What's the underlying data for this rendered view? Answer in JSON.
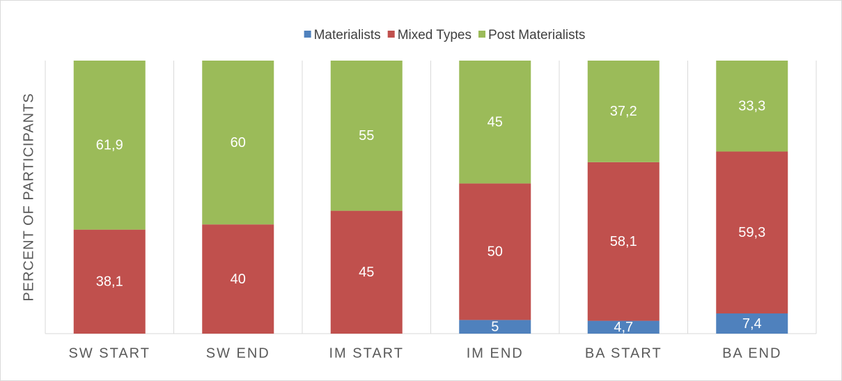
{
  "chart_data": {
    "type": "stacked_bar",
    "y_label": "PERCENT OF PARTICIPANTS",
    "categories": [
      "SW START",
      "SW END",
      "IM START",
      "IM END",
      "BA START",
      "BA END"
    ],
    "series": [
      {
        "name": "Materialists",
        "color": "#4f81bd",
        "values": [
          null,
          null,
          null,
          5,
          4.7,
          7.4
        ],
        "value_labels": [
          null,
          null,
          null,
          "5",
          "4,7",
          "7,4"
        ]
      },
      {
        "name": "Mixed Types",
        "color": "#c0504d",
        "values": [
          38.1,
          40,
          45,
          50,
          58.1,
          59.3
        ],
        "value_labels": [
          "38,1",
          "40",
          "45",
          "50",
          "58,1",
          "59,3"
        ]
      },
      {
        "name": "Post Materialists",
        "color": "#9bbb59",
        "values": [
          61.9,
          60,
          55,
          45,
          37.2,
          33.3
        ],
        "value_labels": [
          "61,9",
          "60",
          "55",
          "45",
          "37,2",
          "33,3"
        ]
      }
    ],
    "ylim": [
      0,
      100
    ],
    "legend": "top"
  }
}
